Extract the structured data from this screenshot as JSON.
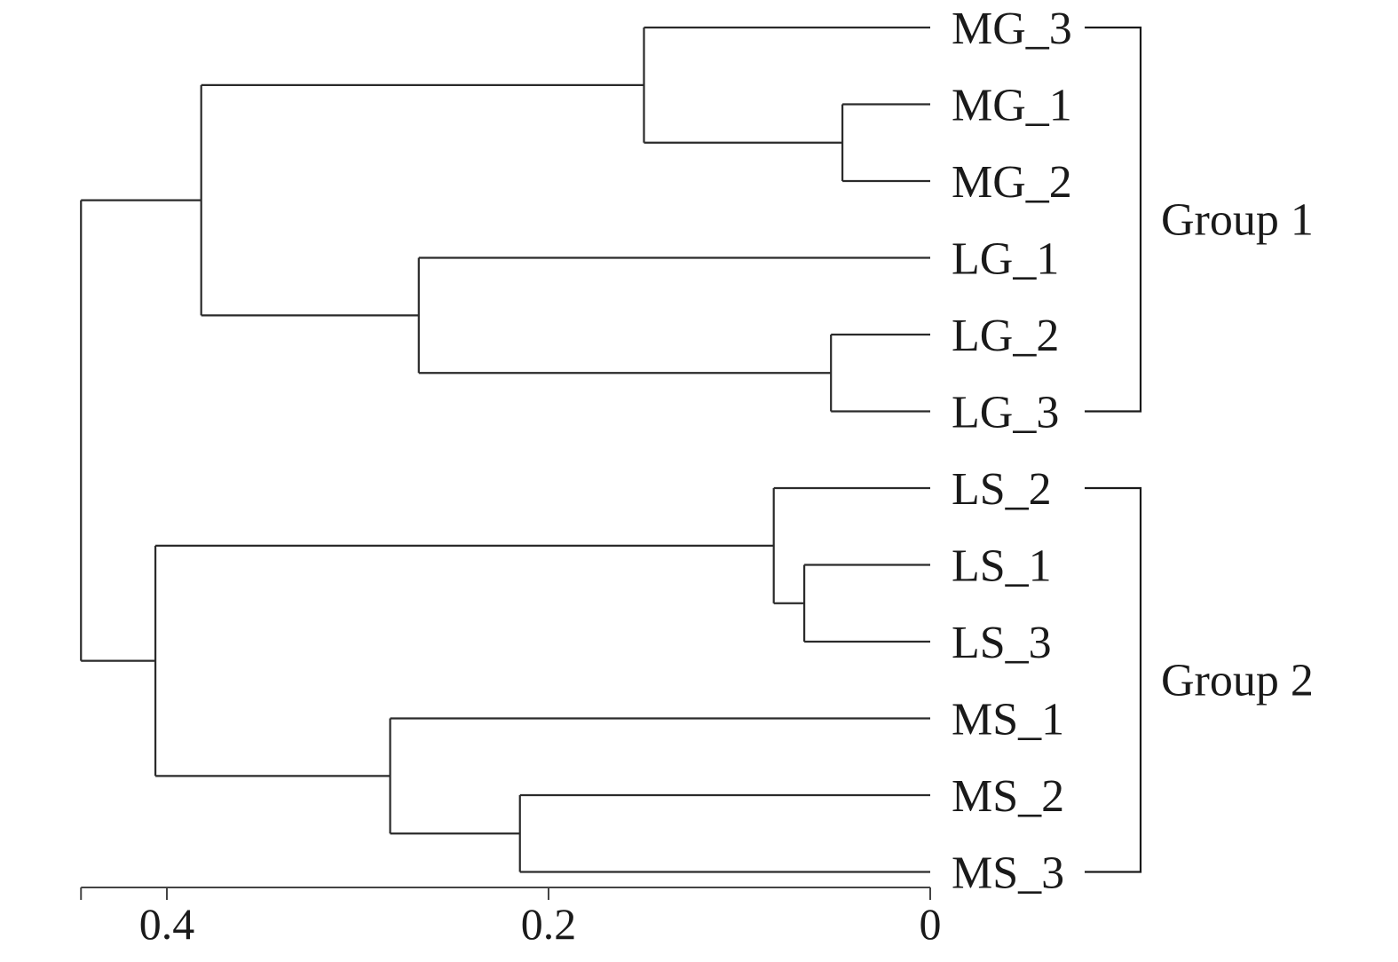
{
  "chart_data": {
    "type": "dendrogram",
    "orientation": "leaves-right",
    "axis": {
      "ticks": [
        0.4,
        0.2,
        0
      ],
      "tick_labels": [
        "0.4",
        "0.2",
        "0"
      ],
      "range": [
        0.445,
        0
      ]
    },
    "leaves": [
      "MG_3",
      "MG_1",
      "MG_2",
      "LG_1",
      "LG_2",
      "LG_3",
      "LS_2",
      "LS_1",
      "LS_3",
      "MS_1",
      "MS_2",
      "MS_3"
    ],
    "merges": [
      {
        "id": "n_mg12",
        "children": [
          "MG_1",
          "MG_2"
        ],
        "height": 0.046
      },
      {
        "id": "n_mg",
        "children": [
          "MG_3",
          "n_mg12"
        ],
        "height": 0.15
      },
      {
        "id": "n_lg23",
        "children": [
          "LG_2",
          "LG_3"
        ],
        "height": 0.052
      },
      {
        "id": "n_lg",
        "children": [
          "LG_1",
          "n_lg23"
        ],
        "height": 0.268
      },
      {
        "id": "n_g1",
        "children": [
          "n_mg",
          "n_lg"
        ],
        "height": 0.382
      },
      {
        "id": "n_ls13",
        "children": [
          "LS_1",
          "LS_3"
        ],
        "height": 0.066
      },
      {
        "id": "n_ls",
        "children": [
          "LS_2",
          "n_ls13"
        ],
        "height": 0.082
      },
      {
        "id": "n_ms23",
        "children": [
          "MS_2",
          "MS_3"
        ],
        "height": 0.215
      },
      {
        "id": "n_ms",
        "children": [
          "MS_1",
          "n_ms23"
        ],
        "height": 0.283
      },
      {
        "id": "n_g2",
        "children": [
          "n_ls",
          "n_ms"
        ],
        "height": 0.406
      },
      {
        "id": "root",
        "children": [
          "n_g1",
          "n_g2"
        ],
        "height": 0.445
      }
    ],
    "groups": [
      {
        "label": "Group 1",
        "from": "MG_3",
        "to": "LG_3"
      },
      {
        "label": "Group 2",
        "from": "LS_2",
        "to": "MS_3"
      }
    ]
  }
}
